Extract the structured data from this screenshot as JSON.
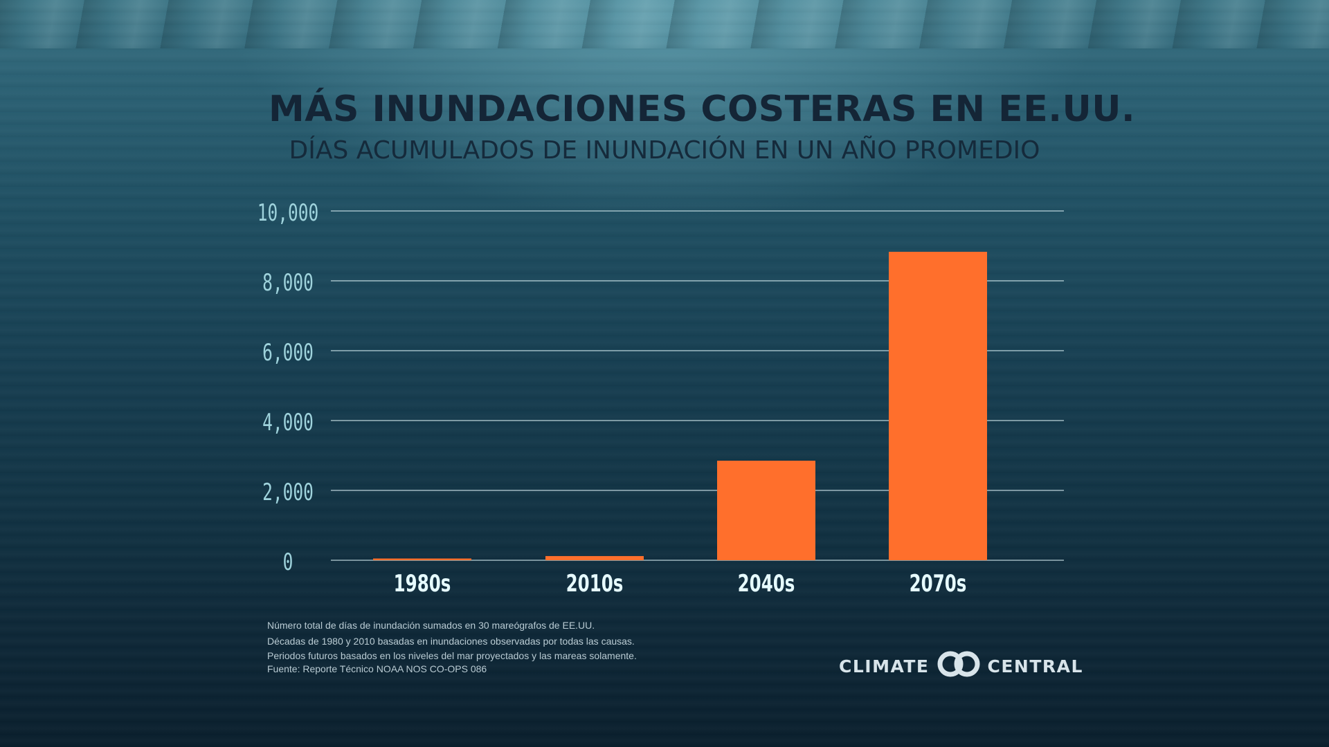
{
  "header": {
    "title": "MÁS INUNDACIONES COSTERAS EN EE.UU.",
    "subtitle": "DÍAS ACUMULADOS DE INUNDACIÓN EN UN AÑO PROMEDIO"
  },
  "chart_data": {
    "type": "bar",
    "title": "MÁS INUNDACIONES COSTERAS EN EE.UU.",
    "subtitle": "DÍAS ACUMULADOS DE INUNDACIÓN EN UN AÑO PROMEDIO",
    "categories": [
      "1980s",
      "2010s",
      "2040s",
      "2070s"
    ],
    "values": [
      50,
      120,
      2850,
      8830
    ],
    "ylim": [
      0,
      10000
    ],
    "yticks": [
      0,
      2000,
      4000,
      6000,
      8000,
      10000
    ],
    "ytick_labels": [
      "0",
      "2,000",
      "4,000",
      "6,000",
      "8,000",
      "10,000"
    ],
    "xlabel": "",
    "ylabel": "",
    "grid": true,
    "bar_color": "#ff6f2c",
    "gridline_color": "#d8eef2",
    "tick_label_color": "#9fd3dc",
    "category_label_color": "#e6fbff"
  },
  "footnotes": [
    "Número total de días de inundación sumados en 30 mareógrafos de EE.UU.",
    "Décadas de 1980 y 2010 basadas en inundaciones observadas por todas las causas.",
    "Periodos futuros basados en los niveles del mar proyectados y las mareas solamente.",
    "Fuente: Reporte Técnico NOAA NOS CO-OPS 086"
  ],
  "logo": {
    "left_text": "CLIMATE",
    "right_text": "CENTRAL",
    "icon": "climate-central-rings-icon"
  }
}
